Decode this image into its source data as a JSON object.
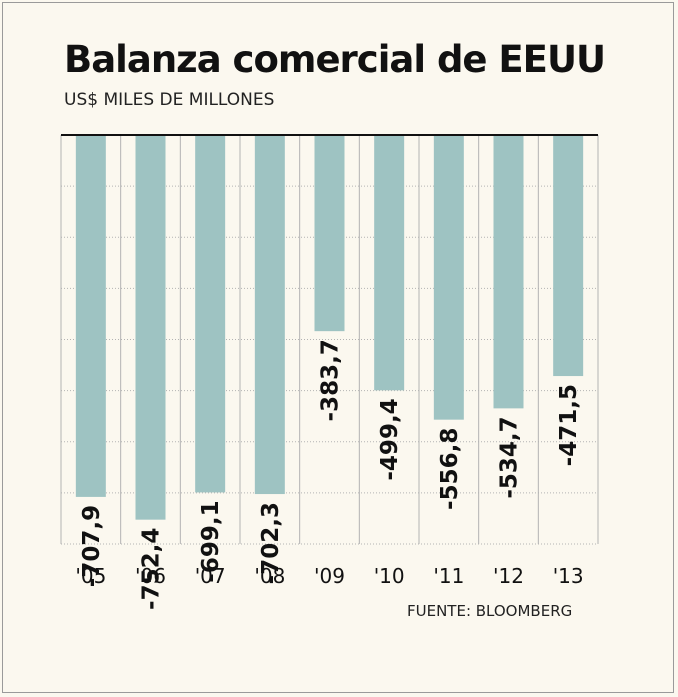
{
  "title": "Balanza comercial de EEUU",
  "subtitle": "US$ MILES DE MILLONES",
  "source": "FUENTE: BLOOMBERG",
  "colors": {
    "bar": "#9ec3c2",
    "grid": "#b3b3b3",
    "axis": "#111111",
    "background": "#fbf8ef"
  },
  "chart_data": {
    "type": "bar",
    "categories": [
      "'05",
      "'06",
      "'07",
      "'08",
      "'09",
      "'10",
      "'11",
      "'12",
      "'13"
    ],
    "values": [
      -707.9,
      -752.4,
      -699.1,
      -702.3,
      -383.7,
      -499.4,
      -556.8,
      -534.7,
      -471.5
    ],
    "value_labels": [
      "-707,9",
      "-752,4",
      "-699,1",
      "-702,3",
      "-383,7",
      "-499,4",
      "-556,8",
      "-534,7",
      "-471,5"
    ],
    "ylim": [
      -800,
      0
    ],
    "grid": true,
    "xlabel": "",
    "ylabel": ""
  }
}
